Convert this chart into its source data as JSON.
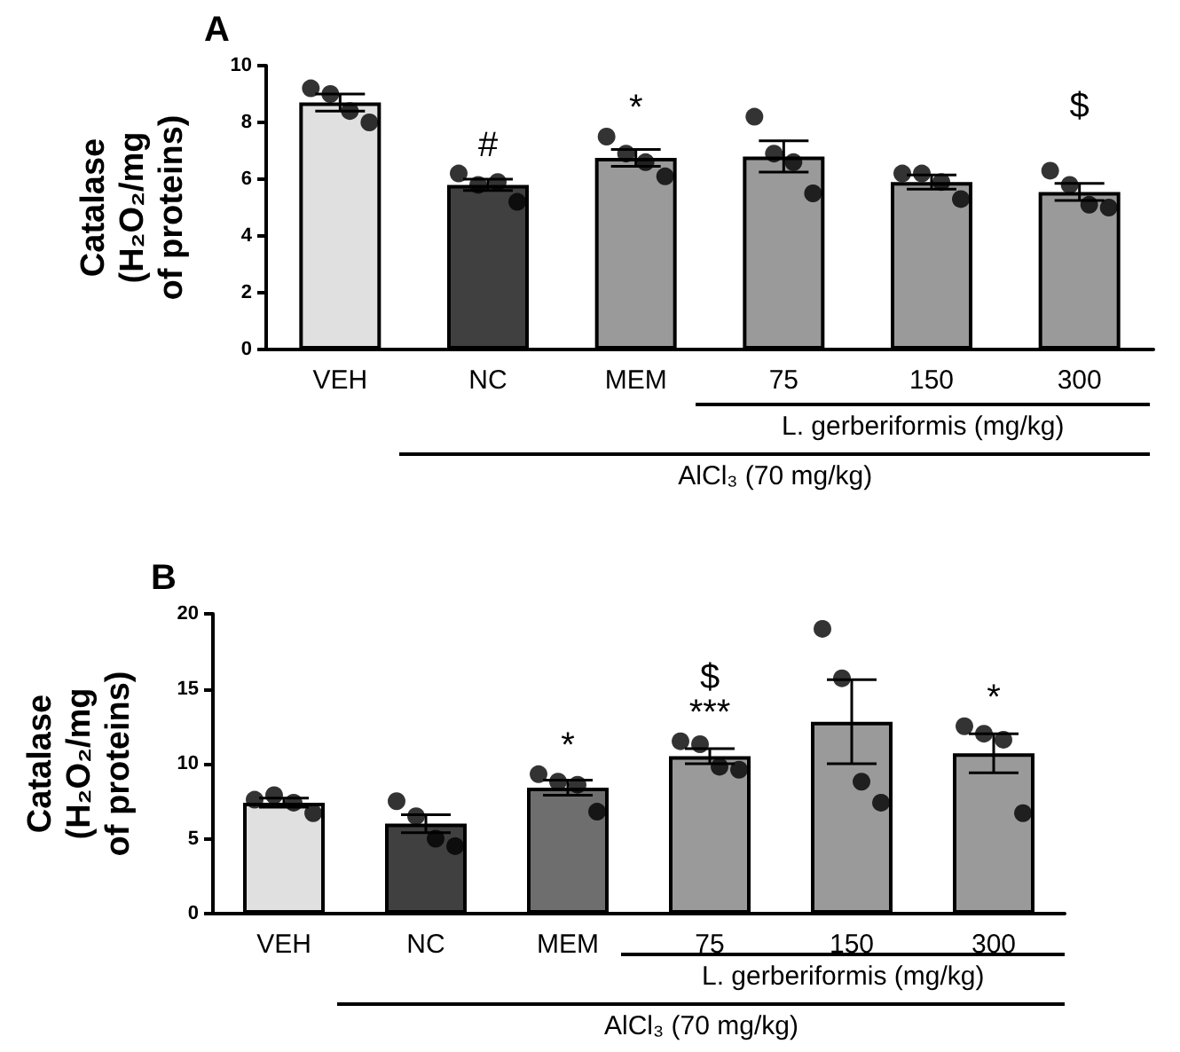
{
  "chart_data": [
    {
      "type": "bar",
      "title": "A",
      "ylabel": "Catalase\n(H₂O₂/mg\nof proteins)",
      "categories": [
        "VEH",
        "NC",
        "MEM",
        "75",
        "150",
        "300"
      ],
      "values": [
        8.7,
        5.8,
        6.75,
        6.8,
        5.9,
        5.55
      ],
      "errors": [
        0.3,
        0.2,
        0.3,
        0.55,
        0.25,
        0.3
      ],
      "colors": [
        "#e0e0e0",
        "#404040",
        "#9a9a9a",
        "#9a9a9a",
        "#9a9a9a",
        "#9a9a9a"
      ],
      "series": [
        {
          "type": "scatter",
          "color": "#000000",
          "x": [
            "VEH",
            "VEH",
            "VEH",
            "VEH",
            "NC",
            "NC",
            "NC",
            "NC",
            "MEM",
            "MEM",
            "MEM",
            "MEM",
            "75",
            "75",
            "75",
            "75",
            "150",
            "150",
            "150",
            "150",
            "300",
            "300",
            "300",
            "300"
          ],
          "values": [
            9.2,
            9.0,
            8.4,
            8.0,
            6.2,
            5.8,
            5.9,
            5.2,
            7.5,
            6.9,
            6.6,
            6.1,
            8.2,
            6.9,
            6.6,
            5.5,
            6.2,
            6.2,
            5.9,
            5.3,
            6.3,
            5.8,
            5.1,
            5.0
          ]
        }
      ],
      "marker": "circle",
      "ylim": [
        0,
        10
      ],
      "yticks": [
        0,
        2,
        4,
        6,
        8,
        10
      ],
      "grid": false,
      "annotations": [
        "#",
        "*",
        "$",
        "L. gerberiformis (mg/kg)",
        "AlCl₃ (70 mg/kg)"
      ]
    },
    {
      "type": "bar",
      "title": "B",
      "ylabel": "Catalase\n(H₂O₂/mg\nof proteins)",
      "categories": [
        "VEH",
        "NC",
        "MEM",
        "75",
        "150",
        "300"
      ],
      "values": [
        7.4,
        6.0,
        8.4,
        10.5,
        12.8,
        10.7
      ],
      "errors": [
        0.3,
        0.6,
        0.5,
        0.5,
        2.8,
        1.3
      ],
      "colors": [
        "#e0e0e0",
        "#404040",
        "#6e6e6e",
        "#9a9a9a",
        "#9a9a9a",
        "#9a9a9a"
      ],
      "series": [
        {
          "type": "scatter",
          "color": "#000000",
          "x": [
            "VEH",
            "VEH",
            "VEH",
            "VEH",
            "NC",
            "NC",
            "NC",
            "NC",
            "MEM",
            "MEM",
            "MEM",
            "MEM",
            "75",
            "75",
            "75",
            "75",
            "150",
            "150",
            "150",
            "150",
            "300",
            "300",
            "300",
            "300"
          ],
          "values": [
            7.6,
            7.9,
            7.4,
            6.7,
            7.5,
            6.5,
            5.0,
            4.5,
            9.3,
            8.8,
            8.6,
            6.8,
            11.5,
            11.3,
            9.8,
            9.6,
            19.0,
            15.7,
            8.8,
            7.4,
            12.5,
            12.0,
            11.6,
            6.7
          ]
        }
      ],
      "marker": "circle",
      "ylim": [
        0,
        20
      ],
      "yticks": [
        0,
        5,
        10,
        15,
        20
      ],
      "grid": false,
      "annotations": [
        "*",
        "***",
        "$",
        "*",
        "L. gerberiformis (mg/kg)",
        "AlCl₃ (70 mg/kg)"
      ]
    }
  ]
}
